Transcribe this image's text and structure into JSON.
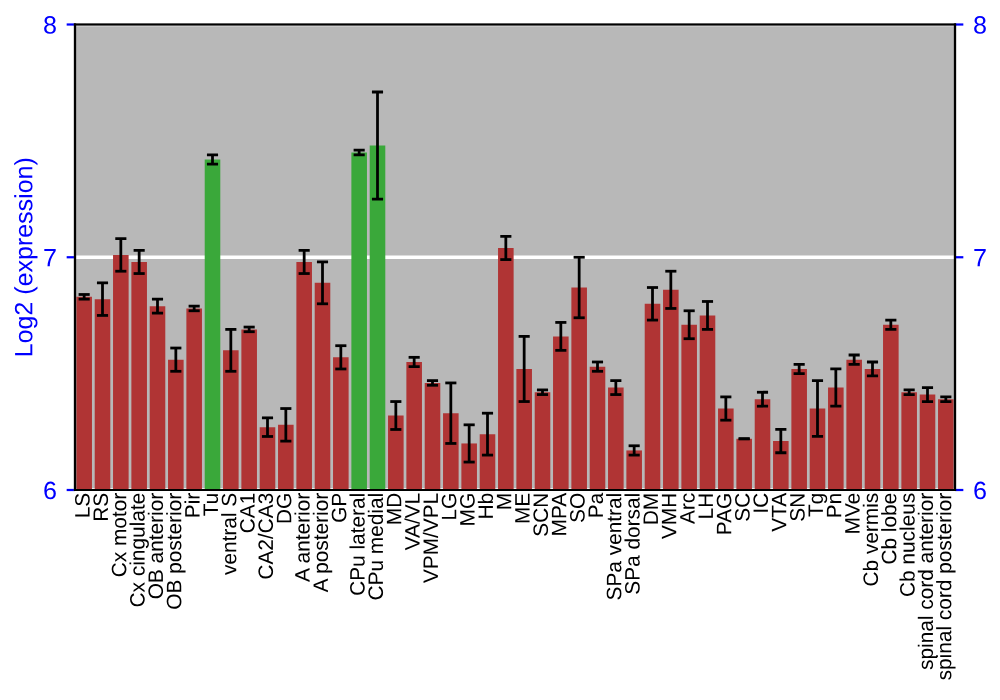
{
  "chart_data": {
    "type": "bar",
    "ylabel": "Log2 (expression)",
    "categories": [
      "LS",
      "RS",
      "Cx motor",
      "Cx cingulate",
      "OB anterior",
      "OB posterior",
      "Pir",
      "Tu",
      "ventral S",
      "CA1",
      "CA2/CA3",
      "DG",
      "A anterior",
      "A posterior",
      "GP",
      "CPu lateral",
      "CPu medial",
      "MD",
      "VA/VL",
      "VPM/VPL",
      "LG",
      "MG",
      "Hb",
      "M",
      "ME",
      "SCN",
      "MPA",
      "SO",
      "Pa",
      "SPa ventral",
      "SPa dorsal",
      "DM",
      "VMH",
      "Arc",
      "LH",
      "PAG",
      "SC",
      "IC",
      "VTA",
      "SN",
      "Tg",
      "Pn",
      "MVe",
      "Cb vermis",
      "Cb lobe",
      "Cb nucleus",
      "spinal cord anterior",
      "spinal cord posterior"
    ],
    "values": [
      6.83,
      6.82,
      7.01,
      6.98,
      6.79,
      6.56,
      6.78,
      7.42,
      6.6,
      6.69,
      6.27,
      6.28,
      6.98,
      6.89,
      6.57,
      7.45,
      7.48,
      6.32,
      6.55,
      6.46,
      6.33,
      6.2,
      6.24,
      7.04,
      6.52,
      6.42,
      6.66,
      6.87,
      6.53,
      6.44,
      6.17,
      6.8,
      6.86,
      6.71,
      6.75,
      6.35,
      6.22,
      6.39,
      6.21,
      6.52,
      6.35,
      6.44,
      6.56,
      6.52,
      6.71,
      6.42,
      6.41,
      6.39
    ],
    "errors": [
      0.01,
      0.07,
      0.07,
      0.05,
      0.03,
      0.05,
      0.01,
      0.02,
      0.09,
      0.01,
      0.04,
      0.07,
      0.05,
      0.09,
      0.05,
      0.01,
      0.23,
      0.06,
      0.02,
      0.01,
      0.13,
      0.08,
      0.09,
      0.05,
      0.14,
      0.01,
      0.06,
      0.13,
      0.02,
      0.03,
      0.02,
      0.07,
      0.08,
      0.06,
      0.06,
      0.05,
      null,
      0.03,
      0.05,
      0.02,
      0.12,
      0.08,
      0.02,
      0.03,
      0.02,
      0.01,
      0.03,
      0.01
    ],
    "colors": [
      "#b03434",
      "#b03434",
      "#b03434",
      "#b03434",
      "#b03434",
      "#b03434",
      "#b03434",
      "#3aa83a",
      "#b03434",
      "#b03434",
      "#b03434",
      "#b03434",
      "#b03434",
      "#b03434",
      "#b03434",
      "#3aa83a",
      "#3aa83a",
      "#b03434",
      "#b03434",
      "#b03434",
      "#b03434",
      "#b03434",
      "#b03434",
      "#b03434",
      "#b03434",
      "#b03434",
      "#b03434",
      "#b03434",
      "#b03434",
      "#b03434",
      "#b03434",
      "#b03434",
      "#b03434",
      "#b03434",
      "#b03434",
      "#b03434",
      "#b03434",
      "#b03434",
      "#b03434",
      "#b03434",
      "#b03434",
      "#b03434",
      "#b03434",
      "#b03434",
      "#b03434",
      "#b03434",
      "#b03434",
      "#b03434"
    ],
    "ylim": [
      6,
      8
    ],
    "yticks": [
      6,
      7,
      8
    ],
    "y2lim": [
      6,
      8
    ],
    "y2ticks": [
      6,
      7,
      8
    ],
    "grid": "y"
  }
}
